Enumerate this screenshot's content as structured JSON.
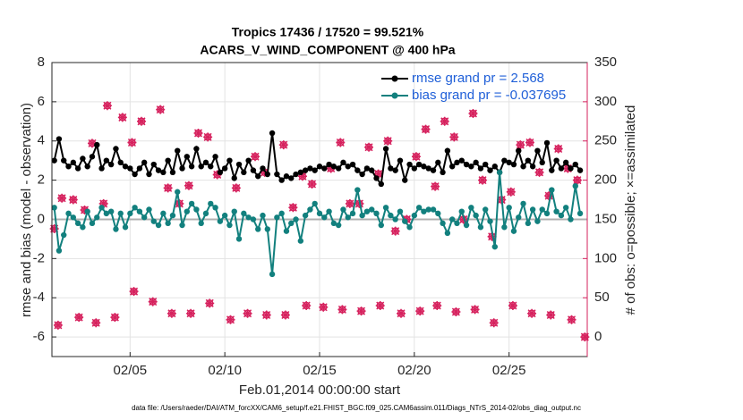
{
  "chart_data": {
    "type": "line",
    "title": "Tropics 17436 / 17520 = 99.521%",
    "subtitle": "ACARS_V_WIND_COMPONENT @ 400 hPa",
    "x_label": "Feb.01,2014 00:00:00 start",
    "y_label": "rmse and bias (model - observation)",
    "y2_label": "# of obs: o=possible; ×=assimilated",
    "footnote": "data file: /Users/raeder/DAI/ATM_forcXX/CAM6_setup/f.e21.FHIST_BGC.f09_025.CAM6assim.011/Diags_NTrS_2014-02/obs_diag_output.nc",
    "xlim": [
      0.875,
      29.125
    ],
    "xticks": [
      {
        "value": 5,
        "label": "02/05"
      },
      {
        "value": 10,
        "label": "02/10"
      },
      {
        "value": 15,
        "label": "02/15"
      },
      {
        "value": 20,
        "label": "02/20"
      },
      {
        "value": 25,
        "label": "02/25"
      }
    ],
    "ylim": [
      -7,
      8
    ],
    "yticks": [
      -6,
      -4,
      -2,
      0,
      2,
      4,
      6,
      8
    ],
    "y2lim": [
      -25,
      350
    ],
    "y2ticks": [
      0,
      50,
      100,
      150,
      200,
      250,
      300,
      350
    ],
    "y2_color": "#d6225e",
    "grid": true,
    "zero_line": 0,
    "legend": "upper right",
    "x": [
      1,
      1.25,
      1.5,
      1.75,
      2,
      2.25,
      2.5,
      2.75,
      3,
      3.25,
      3.5,
      3.75,
      4,
      4.25,
      4.5,
      4.75,
      5,
      5.25,
      5.5,
      5.75,
      6,
      6.25,
      6.5,
      6.75,
      7,
      7.25,
      7.5,
      7.75,
      8,
      8.25,
      8.5,
      8.75,
      9,
      9.25,
      9.5,
      9.75,
      10,
      10.25,
      10.5,
      10.75,
      11,
      11.25,
      11.5,
      11.75,
      12,
      12.25,
      12.5,
      12.75,
      13,
      13.25,
      13.5,
      13.75,
      14,
      14.25,
      14.5,
      14.75,
      15,
      15.25,
      15.5,
      15.75,
      16,
      16.25,
      16.5,
      16.75,
      17,
      17.25,
      17.5,
      17.75,
      18,
      18.25,
      18.5,
      18.75,
      19,
      19.25,
      19.5,
      19.75,
      20,
      20.25,
      20.5,
      20.75,
      21,
      21.25,
      21.5,
      21.75,
      22,
      22.25,
      22.5,
      22.75,
      23,
      23.25,
      23.5,
      23.75,
      24,
      24.25,
      24.5,
      24.75,
      25,
      25.25,
      25.5,
      25.75,
      26,
      26.25,
      26.5,
      26.75,
      27,
      27.25,
      27.5,
      27.75,
      28,
      28.25,
      28.5,
      28.75
    ],
    "series": [
      {
        "name": "rmse grand pr = 2.568",
        "color": "#000000",
        "marker": "dot",
        "values": [
          3.0,
          4.1,
          3.0,
          2.7,
          2.9,
          2.6,
          3.1,
          2.7,
          3.2,
          3.8,
          2.6,
          3.0,
          2.8,
          3.6,
          2.9,
          2.7,
          2.6,
          2.3,
          2.6,
          2.9,
          2.3,
          2.8,
          2.5,
          2.4,
          3.0,
          2.4,
          3.5,
          2.6,
          3.2,
          2.7,
          3.6,
          2.7,
          2.9,
          2.7,
          3.2,
          2.4,
          2.6,
          3.0,
          2.1,
          2.8,
          2.4,
          3.0,
          2.5,
          2.2,
          2.6,
          2.3,
          4.4,
          2.3,
          2.0,
          2.2,
          2.1,
          2.3,
          2.4,
          2.5,
          2.6,
          2.5,
          2.7,
          2.6,
          2.8,
          2.7,
          2.6,
          2.9,
          2.7,
          2.8,
          2.5,
          2.3,
          2.6,
          2.5,
          2.1,
          1.8,
          3.6,
          2.6,
          2.5,
          3.0,
          2.0,
          2.8,
          2.6,
          2.8,
          2.7,
          2.6,
          2.5,
          2.9,
          2.4,
          3.5,
          2.7,
          2.9,
          3.0,
          2.8,
          2.7,
          2.9,
          2.6,
          2.8,
          2.5,
          2.7,
          2.4,
          3.0,
          2.9,
          2.8,
          3.5,
          2.7,
          3.0,
          2.7,
          3.5,
          2.9,
          3.9,
          2.5,
          3.0,
          2.6,
          2.9,
          2.6,
          2.8,
          2.5
        ]
      },
      {
        "name": "bias grand pr = -0.037695",
        "color": "#12807e",
        "marker": "dot",
        "values": [
          0.6,
          -1.6,
          -0.8,
          0.3,
          0.1,
          -0.2,
          -0.4,
          0.4,
          -0.2,
          0.1,
          0.6,
          0.3,
          0.4,
          -0.5,
          0.3,
          -0.4,
          0.3,
          0.6,
          0.4,
          0.1,
          0.5,
          -0.1,
          -0.3,
          0.3,
          -0.2,
          0.2,
          1.4,
          -0.3,
          0.4,
          0.8,
          0.5,
          -0.2,
          0.3,
          0.8,
          0.6,
          -0.1,
          0.2,
          -0.3,
          0.4,
          -1.0,
          0.3,
          0.1,
          0.0,
          -0.5,
          0.2,
          -0.5,
          -2.8,
          0.1,
          0.3,
          -0.6,
          -0.2,
          0.0,
          -1.1,
          0.2,
          0.5,
          0.8,
          0.3,
          0.1,
          0.4,
          -0.2,
          -0.3,
          0.5,
          0.1,
          0.3,
          1.5,
          0.2,
          0.4,
          0.5,
          0.3,
          -0.3,
          0.6,
          0.2,
          0.0,
          0.4,
          -0.1,
          -0.4,
          0.2,
          0.6,
          0.4,
          0.5,
          0.5,
          0.3,
          -0.2,
          -0.7,
          0.0,
          -0.2,
          0.4,
          -0.3,
          0.6,
          0.2,
          -0.4,
          0.5,
          -0.1,
          -1.4,
          2.4,
          -0.4,
          0.6,
          -0.6,
          0.1,
          0.8,
          -0.2,
          0.5,
          -0.1,
          0.5,
          0.3,
          1.5,
          0.4,
          0.2,
          0.6,
          0.0,
          1.7,
          0.3
        ]
      },
      {
        "axis": "y2",
        "color": "#d6225e",
        "marker": "ox",
        "x": [
          1.2,
          2.3,
          3.2,
          4.2,
          5.2,
          6.2,
          7.2,
          8.2,
          9.2,
          10.3,
          11.2,
          12.2,
          13.2,
          14.3,
          15.2,
          16.2,
          17.2,
          18.2,
          19.3,
          20.3,
          21.2,
          22.2,
          23.2,
          24.2,
          25.2,
          26.2,
          27.2,
          28.3,
          29.0,
          1.0,
          1.4,
          2.0,
          2.6,
          3.0,
          3.6,
          3.8,
          4.6,
          5.1,
          5.6,
          6.6,
          7.0,
          7.6,
          8.1,
          8.6,
          9.1,
          9.6,
          10.6,
          11.6,
          12.1,
          13.1,
          13.6,
          14.1,
          14.6,
          15.6,
          16.1,
          16.6,
          17.1,
          17.6,
          18.1,
          18.6,
          19.0,
          19.6,
          20.1,
          20.6,
          21.1,
          21.6,
          22.1,
          22.6,
          23.1,
          23.6,
          24.1,
          24.6,
          25.1,
          25.6,
          26.1,
          26.6,
          27.1,
          27.6,
          28.1,
          28.6
        ],
        "values": [
          15,
          25,
          18,
          25,
          58,
          45,
          30,
          30,
          43,
          22,
          30,
          28,
          28,
          40,
          38,
          35,
          33,
          40,
          30,
          33,
          40,
          32,
          35,
          18,
          40,
          30,
          28,
          22,
          0,
          138,
          177,
          175,
          162,
          247,
          170,
          295,
          280,
          248,
          275,
          290,
          190,
          170,
          193,
          260,
          255,
          207,
          190,
          230,
          210,
          245,
          165,
          205,
          195,
          215,
          248,
          170,
          170,
          242,
          208,
          250,
          135,
          150,
          230,
          265,
          192,
          275,
          255,
          150,
          285,
          200,
          128,
          175,
          185,
          245,
          248,
          210,
          180,
          240,
          215,
          200
        ]
      }
    ]
  }
}
